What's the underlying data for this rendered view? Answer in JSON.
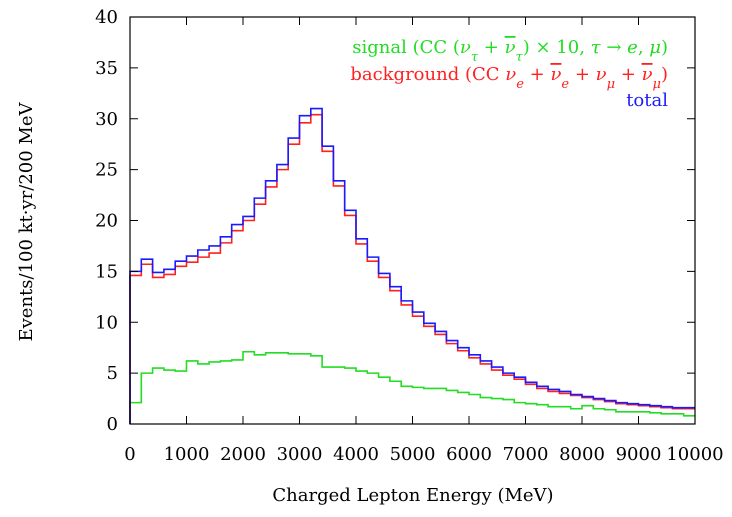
{
  "chart_data": {
    "type": "line",
    "step": true,
    "xlabel": "Charged Lepton Energy (MeV)",
    "ylabel": "Events/100 kt·yr/200 MeV",
    "xlim": [
      0,
      10000
    ],
    "ylim": [
      0,
      40
    ],
    "xticks": [
      0,
      1000,
      2000,
      3000,
      4000,
      5000,
      6000,
      7000,
      8000,
      9000,
      10000
    ],
    "yticks": [
      0,
      5,
      10,
      15,
      20,
      25,
      30,
      35,
      40
    ],
    "grid": false,
    "legend_position": "top-right",
    "x": [
      0,
      200,
      400,
      600,
      800,
      1000,
      1200,
      1400,
      1600,
      1800,
      2000,
      2200,
      2400,
      2600,
      2800,
      3000,
      3200,
      3400,
      3600,
      3800,
      4000,
      4200,
      4400,
      4600,
      4800,
      5000,
      5200,
      5400,
      5600,
      5800,
      6000,
      6200,
      6400,
      6600,
      6800,
      7000,
      7200,
      7400,
      7600,
      7800,
      8000,
      8200,
      8400,
      8600,
      8800,
      9000,
      9200,
      9400,
      9600,
      9800
    ],
    "series": [
      {
        "name": "signal",
        "legend_parts": [
          "signal (CC (",
          "ν",
          "τ",
          " + ",
          "ν",
          "τ",
          ") × 10, ",
          "τ",
          " → ",
          "e",
          ", ",
          "μ",
          ")"
        ],
        "color": "#22dd22",
        "values": [
          2.1,
          5.0,
          5.5,
          5.3,
          5.2,
          6.2,
          5.9,
          6.1,
          6.2,
          6.3,
          7.1,
          6.8,
          7.0,
          7.0,
          6.9,
          6.9,
          6.7,
          5.6,
          5.6,
          5.5,
          5.2,
          5.0,
          4.6,
          4.2,
          3.7,
          3.6,
          3.5,
          3.5,
          3.3,
          3.1,
          2.9,
          2.6,
          2.5,
          2.4,
          2.1,
          2.0,
          1.9,
          1.7,
          1.7,
          1.5,
          1.8,
          1.5,
          1.4,
          1.2,
          1.2,
          1.2,
          1.1,
          1.0,
          1.0,
          0.8
        ]
      },
      {
        "name": "background",
        "legend_parts": [
          "background (CC ",
          "ν",
          "e",
          " + ",
          "ν",
          "e",
          " + ",
          "ν",
          "μ",
          " + ",
          "ν",
          "μ",
          ")"
        ],
        "color": "#ff2020",
        "values": [
          14.6,
          15.7,
          14.4,
          14.7,
          15.5,
          15.9,
          16.4,
          16.8,
          17.8,
          19.0,
          20.0,
          21.6,
          23.3,
          25.0,
          27.5,
          29.6,
          30.4,
          26.8,
          23.4,
          20.5,
          17.7,
          16.0,
          14.4,
          13.1,
          11.7,
          10.6,
          9.6,
          8.8,
          7.9,
          7.2,
          6.5,
          5.9,
          5.3,
          4.8,
          4.4,
          3.9,
          3.5,
          3.2,
          3.0,
          2.8,
          2.6,
          2.4,
          2.2,
          2.0,
          1.9,
          1.8,
          1.7,
          1.6,
          1.5,
          1.5
        ]
      },
      {
        "name": "total",
        "legend_parts": [
          "total"
        ],
        "color": "#1a1aff",
        "values": [
          15.0,
          16.2,
          14.9,
          15.2,
          16.0,
          16.5,
          17.1,
          17.5,
          18.4,
          19.6,
          20.4,
          22.2,
          23.9,
          25.5,
          28.1,
          30.3,
          31.0,
          27.3,
          23.9,
          21.0,
          18.2,
          16.4,
          14.8,
          13.5,
          12.1,
          11.0,
          9.9,
          9.1,
          8.2,
          7.5,
          6.8,
          6.2,
          5.6,
          5.0,
          4.6,
          4.1,
          3.7,
          3.4,
          3.2,
          2.9,
          2.7,
          2.5,
          2.3,
          2.1,
          2.0,
          1.9,
          1.8,
          1.7,
          1.6,
          1.6
        ]
      }
    ]
  }
}
